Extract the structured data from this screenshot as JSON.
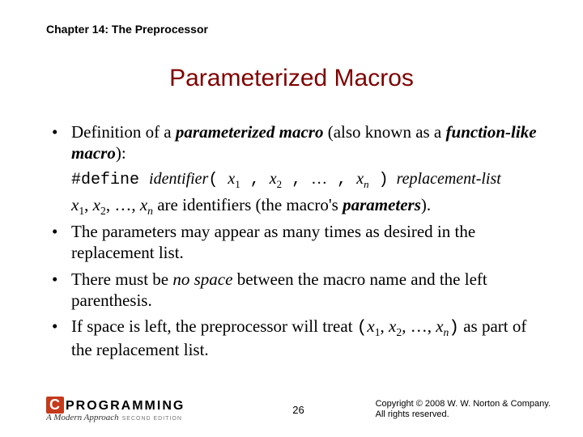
{
  "chapter": "Chapter 14: The Preprocessor",
  "title": "Parameterized Macros",
  "bullets": {
    "b1_pre": "Definition of a ",
    "b1_bold1": "parameterized macro",
    "b1_mid": " (also known as a ",
    "b1_bold2": "function-like macro",
    "b1_post": "):",
    "define_kw": "#define ",
    "define_id": "identifier",
    "define_open": "( ",
    "define_x": "x",
    "define_s1": "1",
    "define_sep": " , ",
    "define_s2": "2",
    "define_dots": "…",
    "define_sn": "n",
    "define_close": " )",
    "define_repl": "replacement-list",
    "ids_s1": "1",
    "ids_comma": ", ",
    "ids_s2": "2",
    "ids_dots": ", …, ",
    "ids_sn": "n",
    "ids_tail_pre": " are identifiers (the macro's ",
    "ids_tail_bold": "parameters",
    "ids_tail_post": ").",
    "b2": "The parameters may appear as many times as desired in the replacement list.",
    "b3_pre": "There must be ",
    "b3_ital": "no space",
    "b3_post": " between the macro name and the left parenthesis.",
    "b4_pre": "If space is left, the preprocessor will treat ",
    "b4_open": "(",
    "b4_x": "x",
    "b4_s1": "1",
    "b4_sep": ", ",
    "b4_s2": "2",
    "b4_dots": ", …, ",
    "b4_sn": "n",
    "b4_close": ")",
    "b4_post": " as part of the replacement list."
  },
  "footer": {
    "logo_c": "C",
    "logo_prog": "PROGRAMMING",
    "logo_sub": "A Modern Approach",
    "logo_ed": "SECOND EDITION",
    "page": "26",
    "copy1": "Copyright © 2008 W. W. Norton & Company.",
    "copy2": "All rights reserved."
  }
}
